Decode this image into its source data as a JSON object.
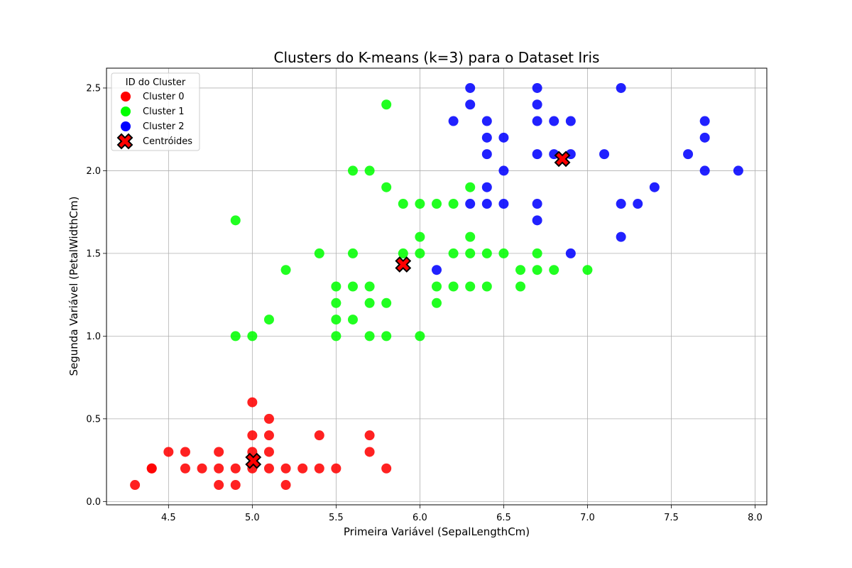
{
  "chart_data": {
    "type": "scatter",
    "title": "Clusters do K-means (k=3) para o Dataset Iris",
    "xlabel": "Primeira Variável (SepalLengthCm)",
    "ylabel": "Segunda Variável (PetalWidthCm)",
    "xlim": [
      4.13,
      8.07
    ],
    "ylim": [
      -0.02,
      2.62
    ],
    "xticks": [
      "4.5",
      "5.0",
      "5.5",
      "6.0",
      "6.5",
      "7.0",
      "7.5",
      "8.0"
    ],
    "yticks": [
      "0.0",
      "0.5",
      "1.0",
      "1.5",
      "2.0",
      "2.5"
    ],
    "grid": true,
    "legend": {
      "title": "ID do Cluster",
      "placement": "top-left"
    },
    "series": [
      {
        "name": "Cluster 0",
        "color": "#ff0000",
        "points": [
          [
            4.3,
            0.1
          ],
          [
            4.4,
            0.2
          ],
          [
            4.4,
            0.2
          ],
          [
            4.5,
            0.3
          ],
          [
            4.6,
            0.3
          ],
          [
            4.6,
            0.2
          ],
          [
            4.7,
            0.2
          ],
          [
            4.8,
            0.3
          ],
          [
            4.8,
            0.2
          ],
          [
            4.8,
            0.1
          ],
          [
            4.9,
            0.2
          ],
          [
            4.9,
            0.1
          ],
          [
            5.0,
            0.6
          ],
          [
            5.0,
            0.4
          ],
          [
            5.0,
            0.3
          ],
          [
            5.0,
            0.2
          ],
          [
            5.1,
            0.5
          ],
          [
            5.1,
            0.4
          ],
          [
            5.1,
            0.3
          ],
          [
            5.1,
            0.2
          ],
          [
            5.2,
            0.2
          ],
          [
            5.2,
            0.1
          ],
          [
            5.3,
            0.2
          ],
          [
            5.4,
            0.4
          ],
          [
            5.4,
            0.2
          ],
          [
            5.5,
            0.2
          ],
          [
            5.7,
            0.4
          ],
          [
            5.7,
            0.3
          ],
          [
            5.8,
            0.2
          ]
        ]
      },
      {
        "name": "Cluster 1",
        "color": "#00ff00",
        "points": [
          [
            4.9,
            1.7
          ],
          [
            4.9,
            1.0
          ],
          [
            5.0,
            1.0
          ],
          [
            5.1,
            1.1
          ],
          [
            5.2,
            1.4
          ],
          [
            5.4,
            1.5
          ],
          [
            5.5,
            1.3
          ],
          [
            5.5,
            1.2
          ],
          [
            5.5,
            1.1
          ],
          [
            5.5,
            1.0
          ],
          [
            5.6,
            2.0
          ],
          [
            5.6,
            1.5
          ],
          [
            5.6,
            1.3
          ],
          [
            5.6,
            1.1
          ],
          [
            5.7,
            2.0
          ],
          [
            5.7,
            1.3
          ],
          [
            5.7,
            1.2
          ],
          [
            5.7,
            1.0
          ],
          [
            5.8,
            2.4
          ],
          [
            5.8,
            1.9
          ],
          [
            5.8,
            1.2
          ],
          [
            5.8,
            1.0
          ],
          [
            5.9,
            1.8
          ],
          [
            5.9,
            1.5
          ],
          [
            6.0,
            1.8
          ],
          [
            6.0,
            1.6
          ],
          [
            6.0,
            1.5
          ],
          [
            6.0,
            1.0
          ],
          [
            6.1,
            1.8
          ],
          [
            6.1,
            1.3
          ],
          [
            6.1,
            1.2
          ],
          [
            6.2,
            1.8
          ],
          [
            6.2,
            1.5
          ],
          [
            6.2,
            1.3
          ],
          [
            6.3,
            1.9
          ],
          [
            6.3,
            1.6
          ],
          [
            6.3,
            1.5
          ],
          [
            6.3,
            1.3
          ],
          [
            6.4,
            1.5
          ],
          [
            6.4,
            1.3
          ],
          [
            6.5,
            1.5
          ],
          [
            6.6,
            1.4
          ],
          [
            6.6,
            1.3
          ],
          [
            6.7,
            1.5
          ],
          [
            6.7,
            1.4
          ],
          [
            6.8,
            1.4
          ],
          [
            7.0,
            1.4
          ]
        ]
      },
      {
        "name": "Cluster 2",
        "color": "#0000ff",
        "points": [
          [
            6.1,
            1.4
          ],
          [
            6.2,
            2.3
          ],
          [
            6.3,
            2.5
          ],
          [
            6.3,
            2.4
          ],
          [
            6.3,
            1.8
          ],
          [
            6.4,
            2.3
          ],
          [
            6.4,
            2.2
          ],
          [
            6.4,
            2.1
          ],
          [
            6.4,
            1.9
          ],
          [
            6.4,
            1.8
          ],
          [
            6.5,
            2.2
          ],
          [
            6.5,
            2.0
          ],
          [
            6.5,
            1.8
          ],
          [
            6.7,
            2.5
          ],
          [
            6.7,
            2.4
          ],
          [
            6.7,
            2.3
          ],
          [
            6.7,
            2.1
          ],
          [
            6.7,
            1.8
          ],
          [
            6.7,
            1.7
          ],
          [
            6.8,
            2.3
          ],
          [
            6.8,
            2.1
          ],
          [
            6.9,
            2.3
          ],
          [
            6.9,
            2.1
          ],
          [
            6.9,
            1.5
          ],
          [
            7.1,
            2.1
          ],
          [
            7.2,
            2.5
          ],
          [
            7.2,
            1.8
          ],
          [
            7.2,
            1.6
          ],
          [
            7.3,
            1.8
          ],
          [
            7.4,
            1.9
          ],
          [
            7.6,
            2.1
          ],
          [
            7.7,
            2.3
          ],
          [
            7.7,
            2.2
          ],
          [
            7.7,
            2.0
          ],
          [
            7.9,
            2.0
          ]
        ]
      }
    ],
    "centroids": {
      "name": "Centróides",
      "color": "#ff0000",
      "points": [
        [
          5.006,
          0.246
        ],
        [
          5.9,
          1.433
        ],
        [
          6.85,
          2.071
        ]
      ]
    }
  }
}
